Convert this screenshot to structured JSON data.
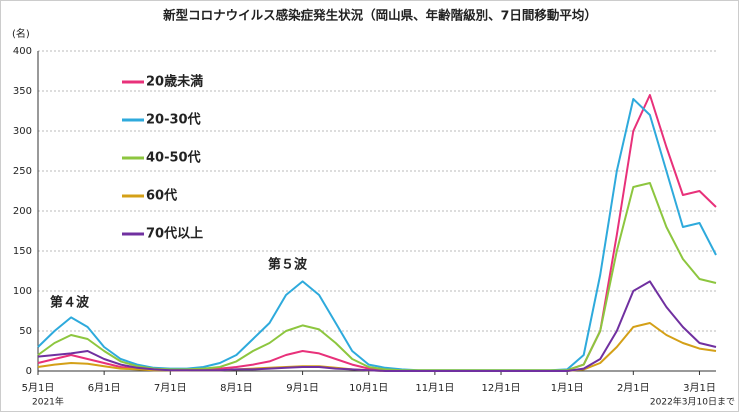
{
  "chart_data": {
    "type": "line",
    "title": "新型コロナウイルス感染症発生状況（岡山県、年齢階級別、7日間移動平均）",
    "y_label": "(名)",
    "year_label": "2021年",
    "note": "2022年3月10日まで",
    "annotations": [
      "第４波",
      "第５波"
    ],
    "categories": [
      "5月1日",
      null,
      null,
      null,
      "6月1日",
      null,
      null,
      null,
      "7月1日",
      null,
      null,
      null,
      "8月1日",
      null,
      null,
      null,
      "9月1日",
      null,
      null,
      null,
      "10月1日",
      null,
      null,
      null,
      "11月1日",
      null,
      null,
      null,
      "12月1日",
      null,
      null,
      null,
      "1月1日",
      null,
      null,
      null,
      "2月1日",
      null,
      null,
      null,
      "3月1日",
      null
    ],
    "series": [
      {
        "name": "20歳未満",
        "color": "#e8317a",
        "values": [
          10,
          15,
          20,
          15,
          10,
          5,
          3,
          2,
          1,
          1,
          2,
          3,
          5,
          8,
          12,
          20,
          25,
          22,
          15,
          8,
          3,
          1,
          1,
          0,
          0,
          0,
          0,
          0,
          0,
          0,
          0,
          0,
          1,
          8,
          50,
          170,
          300,
          345,
          280,
          220,
          225,
          205
        ]
      },
      {
        "name": "20-30代",
        "color": "#2eaadc",
        "values": [
          30,
          50,
          67,
          55,
          30,
          15,
          8,
          4,
          3,
          3,
          5,
          10,
          20,
          40,
          60,
          95,
          112,
          95,
          60,
          25,
          8,
          4,
          2,
          1,
          1,
          1,
          1,
          1,
          1,
          1,
          1,
          1,
          2,
          20,
          120,
          250,
          340,
          320,
          250,
          180,
          185,
          145
        ]
      },
      {
        "name": "40-50代",
        "color": "#8dc63f",
        "values": [
          20,
          35,
          45,
          40,
          25,
          12,
          6,
          3,
          2,
          2,
          3,
          5,
          12,
          25,
          35,
          50,
          57,
          52,
          35,
          15,
          5,
          2,
          1,
          1,
          1,
          1,
          1,
          1,
          1,
          1,
          1,
          1,
          1,
          8,
          50,
          150,
          230,
          235,
          180,
          140,
          115,
          110
        ]
      },
      {
        "name": "60代",
        "color": "#d4a017",
        "values": [
          5,
          8,
          10,
          9,
          6,
          3,
          2,
          1,
          1,
          1,
          1,
          1,
          2,
          3,
          4,
          5,
          6,
          6,
          4,
          2,
          1,
          0,
          0,
          0,
          0,
          0,
          0,
          0,
          0,
          0,
          0,
          0,
          0,
          2,
          10,
          30,
          55,
          60,
          45,
          35,
          28,
          25
        ]
      },
      {
        "name": "70代以上",
        "color": "#7030a0",
        "values": [
          18,
          20,
          22,
          25,
          15,
          8,
          4,
          2,
          1,
          1,
          1,
          1,
          2,
          2,
          3,
          4,
          5,
          5,
          3,
          2,
          1,
          0,
          0,
          0,
          0,
          0,
          0,
          0,
          0,
          0,
          0,
          0,
          0,
          3,
          15,
          50,
          100,
          112,
          80,
          55,
          35,
          30
        ]
      }
    ],
    "ylim": [
      0,
      400
    ],
    "yticks": [
      0,
      50,
      100,
      150,
      200,
      250,
      300,
      350,
      400
    ],
    "grid": true,
    "legend": "upper left"
  }
}
